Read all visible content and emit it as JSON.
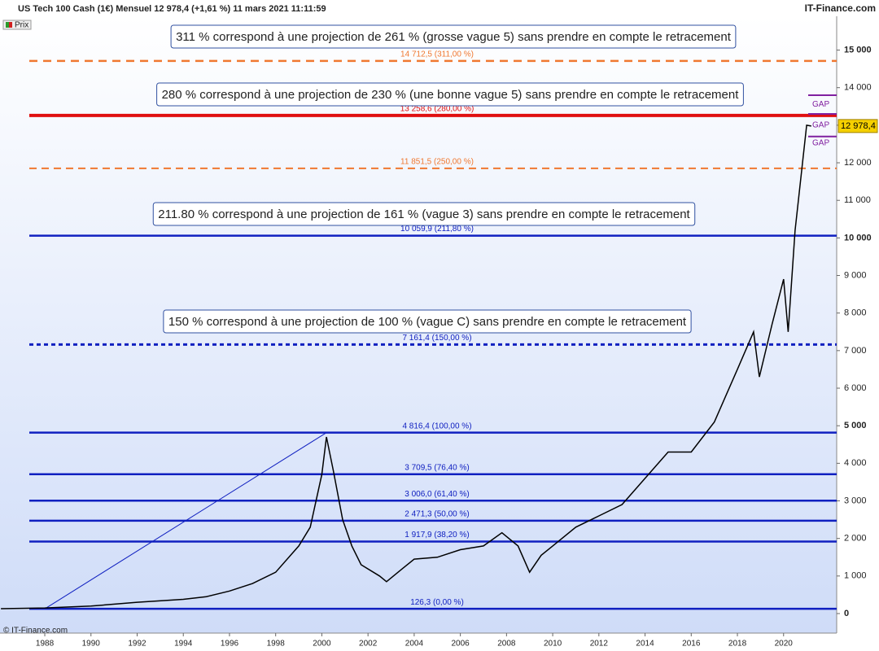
{
  "chart_data": {
    "type": "line",
    "title": "US Tech 100 Cash (1€) Mensuel 12 978,4 (+1,61 %) 11 mars 2021 11:11:59",
    "source": "IT-Finance.com",
    "copyright": "© IT-Finance.com",
    "legend_label": "Prix",
    "last_price": {
      "value": 12978.4,
      "label": "12 978,4"
    },
    "xlim": [
      1986.06,
      2022.3
    ],
    "ylim": [
      -520,
      15900
    ],
    "xticks": [
      1988,
      1990,
      1992,
      1994,
      1996,
      1998,
      2000,
      2002,
      2004,
      2006,
      2008,
      2010,
      2012,
      2014,
      2016,
      2018,
      2020
    ],
    "yticks": [
      0,
      {
        "value": 1000,
        "label": "1 000"
      },
      {
        "value": 2000,
        "label": "2 000"
      },
      {
        "value": 3000,
        "label": "3 000"
      },
      {
        "value": 4000,
        "label": "4 000"
      },
      {
        "value": 5000,
        "label": "5 000"
      },
      {
        "value": 6000,
        "label": "6 000"
      },
      {
        "value": 7000,
        "label": "7 000"
      },
      {
        "value": 8000,
        "label": "8 000"
      },
      {
        "value": 9000,
        "label": "9 000"
      },
      {
        "value": 10000,
        "label": "10 000"
      },
      {
        "value": 11000,
        "label": "11 000"
      },
      {
        "value": 12000,
        "label": "12 000"
      },
      {
        "value": 13000,
        "label": "13 000"
      },
      {
        "value": 14000,
        "label": "14 000"
      },
      {
        "value": 15000,
        "label": "15 000"
      }
    ],
    "series": [
      {
        "name": "Prix",
        "color": "#000000",
        "x": [
          1986.1,
          1988,
          1990,
          1992,
          1994,
          1995,
          1996,
          1997,
          1998,
          1999,
          1999.5,
          2000.0,
          2000.2,
          2000.5,
          2000.9,
          2001.3,
          2001.7,
          2002.5,
          2002.8,
          2003.5,
          2004,
          2005,
          2006,
          2007,
          2007.8,
          2008.5,
          2009.0,
          2009.5,
          2010,
          2011,
          2012,
          2013,
          2014,
          2015,
          2016,
          2017,
          2018,
          2018.7,
          2018.95,
          2019.5,
          2020.0,
          2020.2,
          2020.5,
          2021.0,
          2021.2
        ],
        "values": [
          130,
          150,
          200,
          300,
          380,
          450,
          600,
          800,
          1100,
          1800,
          2300,
          3700,
          4700,
          3800,
          2500,
          1800,
          1300,
          1000,
          850,
          1200,
          1450,
          1500,
          1700,
          1800,
          2150,
          1800,
          1100,
          1550,
          1800,
          2300,
          2600,
          2900,
          3600,
          4300,
          4300,
          5100,
          6500,
          7500,
          6300,
          7700,
          8900,
          7500,
          10200,
          13000,
          12978.4
        ]
      }
    ],
    "levels": [
      {
        "value": 14712.5,
        "label": "14 712,5 (311,00 %)",
        "color": "#f07830",
        "style": "dashed"
      },
      {
        "value": 13258.6,
        "label": "13 258,6 (280,00 %)",
        "color": "#e01010",
        "style": "thick"
      },
      {
        "value": 11851.5,
        "label": "11 851,5 (250,00 %)",
        "color": "#f07830",
        "style": "dashed-thin"
      },
      {
        "value": 10059.9,
        "label": "10 059,9 (211,80 %)",
        "color": "#1020c0",
        "style": "solid"
      },
      {
        "value": 7161.4,
        "label": "7 161,4 (150,00 %)",
        "color": "#1020c0",
        "style": "dotted"
      },
      {
        "value": 4816.4,
        "label": "4 816,4 (100,00 %)",
        "color": "#1020c0",
        "style": "solid"
      },
      {
        "value": 3709.5,
        "label": "3 709,5 (76,40 %)",
        "color": "#1020c0",
        "style": "solid"
      },
      {
        "value": 3006.0,
        "label": "3 006,0 (61,40 %)",
        "color": "#1020c0",
        "style": "solid"
      },
      {
        "value": 2471.3,
        "label": "2 471,3 (50,00 %)",
        "color": "#1020c0",
        "style": "solid"
      },
      {
        "value": 1917.9,
        "label": "1 917,9 (38,20 %)",
        "color": "#1020c0",
        "style": "solid"
      },
      {
        "value": 126.3,
        "label": "126,3 (0,00 %)",
        "color": "#1020c0",
        "style": "solid"
      }
    ],
    "annotations": [
      "311 % correspond à une projection de 261 % (grosse vague 5) sans prendre en compte le retracement",
      "280 % correspond à une projection de 230 % (une bonne vague 5) sans prendre en compte le retracement",
      "211.80 % correspond à une projection de 161 % (vague 3) sans prendre en compte le retracement",
      "150 % correspond à une projection de 100 % (vague C) sans prendre en compte le retracement"
    ],
    "gaps": [
      "GAP",
      "GAP",
      "GAP"
    ]
  }
}
